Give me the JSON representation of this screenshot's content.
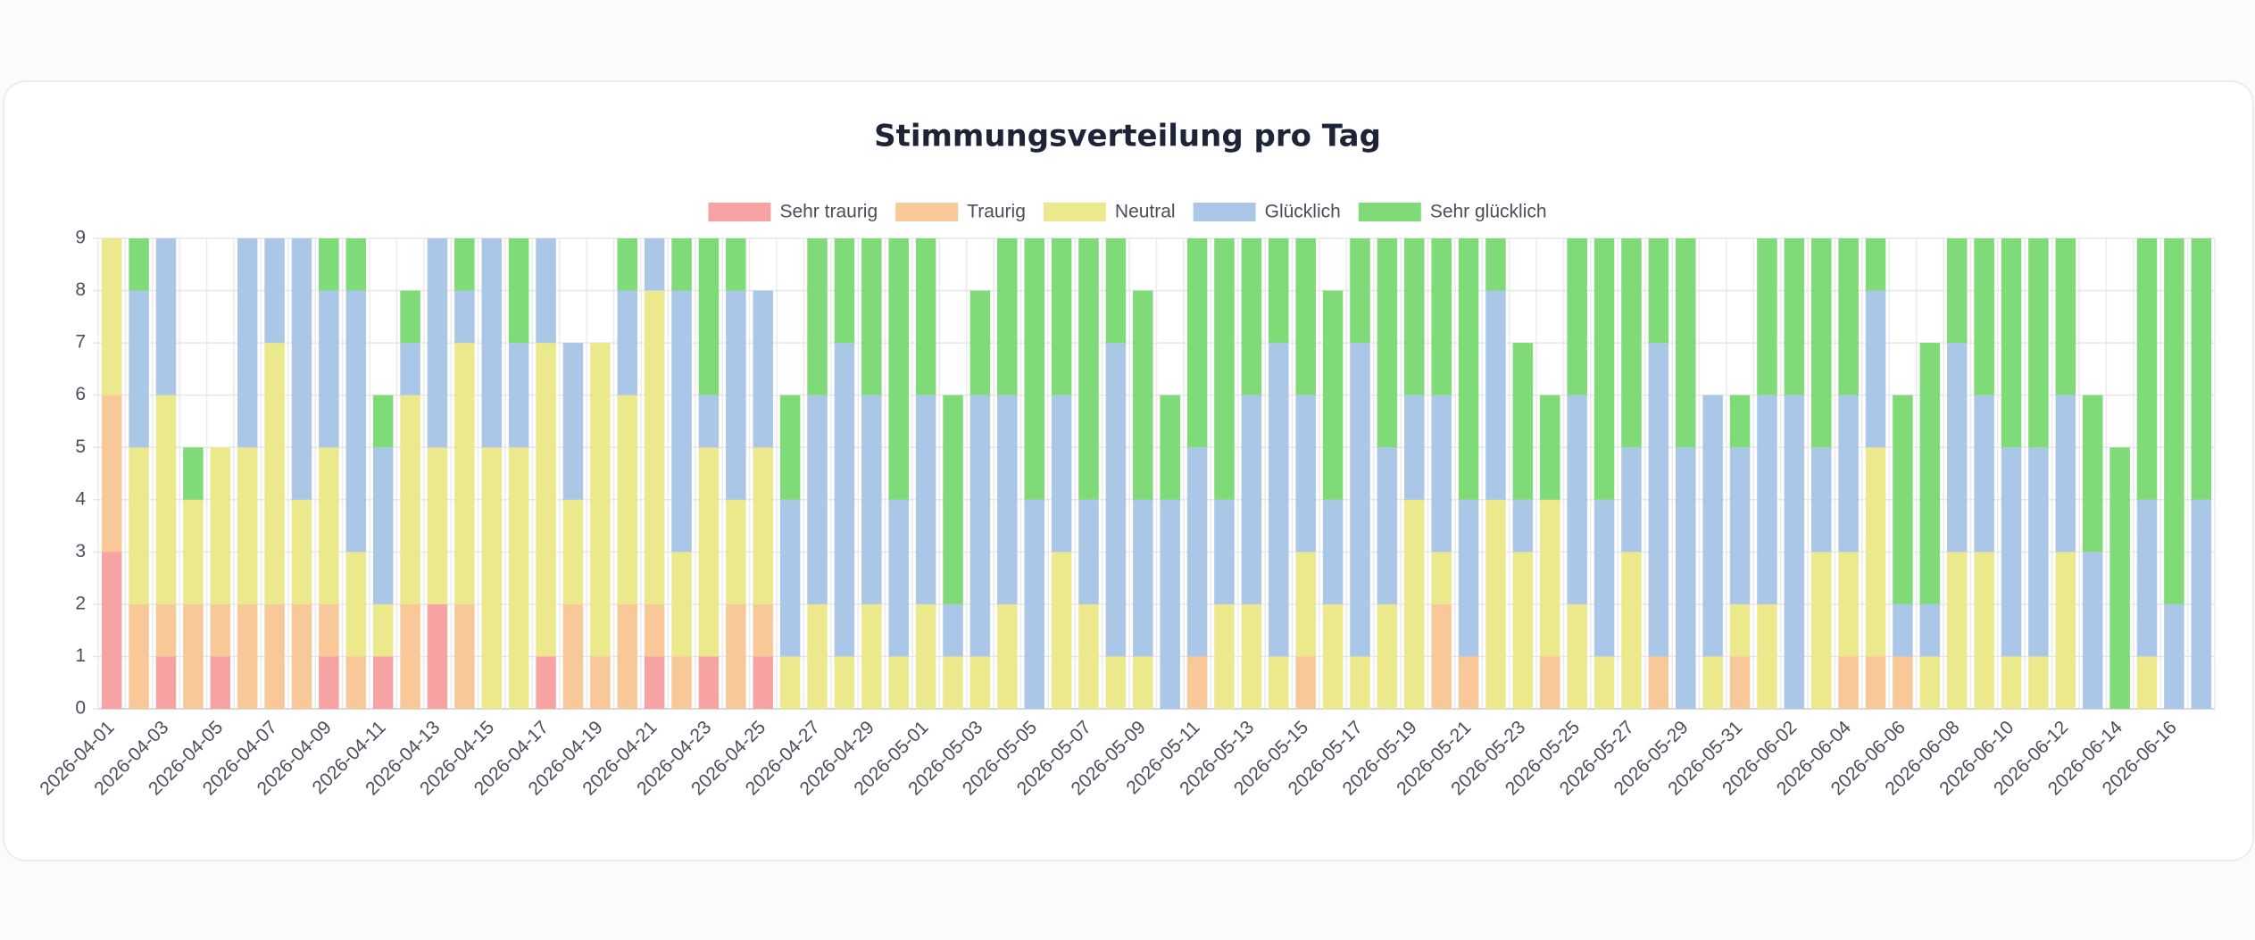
{
  "chart_data": {
    "type": "stacked_bar",
    "title": "Stimmungsverteilung pro Tag",
    "categories": [
      "2026-04-01",
      null,
      "2026-04-03",
      null,
      "2026-04-05",
      null,
      "2026-04-07",
      null,
      "2026-04-09",
      null,
      "2026-04-11",
      null,
      "2026-04-13",
      null,
      "2026-04-15",
      null,
      "2026-04-17",
      null,
      "2026-04-19",
      null,
      "2026-04-21",
      null,
      "2026-04-23",
      null,
      "2026-04-25",
      null,
      "2026-04-27",
      null,
      "2026-04-29",
      null,
      "2026-05-01",
      null,
      "2026-05-03",
      null,
      "2026-05-05",
      null,
      "2026-05-07",
      null,
      "2026-05-09",
      null,
      "2026-05-11",
      null,
      "2026-05-13",
      null,
      "2026-05-15",
      null,
      "2026-05-17",
      null,
      "2026-05-19",
      null,
      "2026-05-21",
      null,
      "2026-05-23",
      null,
      "2026-05-25",
      null,
      "2026-05-27",
      null,
      "2026-05-29",
      null,
      "2026-05-31",
      null,
      "2026-06-02",
      null,
      "2026-06-04",
      null,
      "2026-06-06",
      null,
      "2026-06-08",
      null,
      "2026-06-10",
      null,
      "2026-06-12",
      null,
      "2026-06-14",
      null,
      "2026-06-16",
      null
    ],
    "series": [
      {
        "name": "Sehr traurig",
        "color": "#f8a3a3",
        "values": [
          3,
          0,
          1,
          0,
          1,
          0,
          0,
          0,
          1,
          0,
          1,
          0,
          2,
          0,
          0,
          0,
          1,
          0,
          0,
          0,
          1,
          0,
          1,
          0,
          1,
          0,
          0,
          0,
          0,
          0,
          0,
          0,
          0,
          0,
          0,
          0,
          0,
          0,
          0,
          0,
          0,
          0,
          0,
          0,
          0,
          0,
          0,
          0,
          0,
          0,
          0,
          0,
          0,
          0,
          0,
          0,
          0,
          0,
          0,
          0,
          0,
          0,
          0,
          0,
          0,
          0,
          0,
          0,
          0,
          0,
          0,
          0,
          0,
          0,
          0,
          0,
          0,
          0
        ]
      },
      {
        "name": "Traurig",
        "color": "#f8c898",
        "values": [
          3,
          2,
          1,
          2,
          1,
          2,
          2,
          2,
          1,
          1,
          0,
          2,
          0,
          2,
          0,
          0,
          0,
          2,
          1,
          2,
          1,
          1,
          0,
          2,
          1,
          0,
          0,
          0,
          0,
          0,
          0,
          0,
          0,
          0,
          0,
          0,
          0,
          0,
          0,
          0,
          1,
          0,
          0,
          0,
          1,
          0,
          0,
          0,
          0,
          2,
          1,
          0,
          0,
          1,
          0,
          0,
          0,
          1,
          0,
          0,
          1,
          0,
          0,
          0,
          1,
          1,
          1,
          0,
          0,
          0,
          0,
          0,
          0,
          0,
          0,
          0,
          0,
          0
        ]
      },
      {
        "name": "Neutral",
        "color": "#ece88c",
        "values": [
          3,
          3,
          4,
          2,
          3,
          3,
          5,
          2,
          3,
          2,
          1,
          4,
          3,
          5,
          5,
          5,
          6,
          2,
          6,
          4,
          6,
          2,
          4,
          2,
          3,
          1,
          2,
          1,
          2,
          1,
          2,
          1,
          1,
          2,
          0,
          3,
          2,
          1,
          1,
          0,
          0,
          2,
          2,
          1,
          2,
          2,
          1,
          2,
          4,
          1,
          0,
          4,
          3,
          3,
          2,
          1,
          3,
          0,
          0,
          1,
          1,
          2,
          0,
          3,
          2,
          4,
          0,
          1,
          3,
          3,
          1,
          1,
          3,
          0,
          0,
          1,
          0,
          0
        ]
      },
      {
        "name": "Glücklich",
        "color": "#aac7e8",
        "values": [
          0,
          3,
          3,
          0,
          0,
          4,
          2,
          5,
          3,
          5,
          3,
          1,
          4,
          1,
          4,
          2,
          2,
          3,
          0,
          2,
          1,
          5,
          1,
          4,
          3,
          3,
          4,
          6,
          4,
          3,
          4,
          1,
          5,
          4,
          4,
          3,
          2,
          6,
          3,
          4,
          4,
          2,
          4,
          6,
          3,
          2,
          6,
          3,
          2,
          3,
          3,
          4,
          1,
          0,
          4,
          3,
          2,
          6,
          5,
          5,
          3,
          4,
          6,
          2,
          3,
          3,
          1,
          1,
          4,
          3,
          4,
          4,
          3,
          3,
          0,
          3,
          2,
          4
        ]
      },
      {
        "name": "Sehr glücklich",
        "color": "#7edb77",
        "values": [
          0,
          1,
          0,
          1,
          0,
          0,
          0,
          0,
          1,
          1,
          1,
          1,
          0,
          1,
          0,
          2,
          0,
          0,
          0,
          1,
          0,
          1,
          3,
          1,
          0,
          2,
          3,
          2,
          3,
          5,
          3,
          4,
          2,
          3,
          5,
          3,
          5,
          2,
          4,
          2,
          4,
          5,
          3,
          2,
          3,
          4,
          2,
          4,
          3,
          3,
          5,
          1,
          3,
          2,
          3,
          5,
          4,
          2,
          4,
          0,
          1,
          3,
          3,
          4,
          3,
          1,
          4,
          5,
          2,
          3,
          4,
          4,
          3,
          3,
          5,
          5,
          7,
          5
        ]
      }
    ],
    "ylim": [
      0,
      9
    ],
    "yticks": [
      0,
      1,
      2,
      3,
      4,
      5,
      6,
      7,
      8,
      9
    ],
    "grid": true,
    "legend": "top"
  }
}
